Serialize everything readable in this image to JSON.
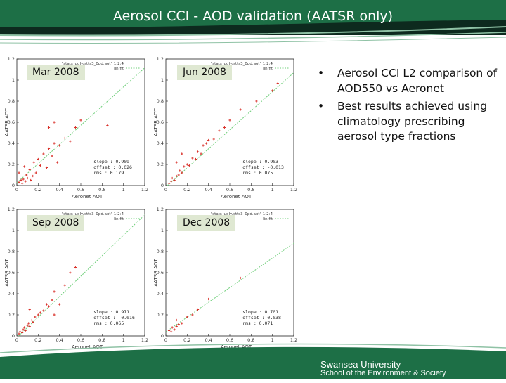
{
  "slide": {
    "title": "Aerosol CCI - AOD validation (AATSR only)",
    "colors": {
      "header_dark": "#0d2a1e",
      "header_green": "#1d6f46",
      "stripe": "#8fc2a5",
      "month_label_bg": "#dfe8d2",
      "points": "#d9322b",
      "fit_line": "#6fcf7a"
    },
    "bullets": [
      "Aerosol CCI L2 comparison of AOD550 vs Aeronet",
      "Best results achieved using climatology prescribing aerosol type fractions"
    ],
    "bullet_glyph": "•",
    "footer": {
      "university": "Swansea University",
      "school": "School of the Environment & Society"
    }
  },
  "chart_data": [
    {
      "type": "scatter",
      "panel_label": "Mar 2008",
      "plot_title": "\"stats_ugly/stts3_0pd.aot\" 1:2:4",
      "legend": "lin fit",
      "xlabel": "Aeronet AOT",
      "ylabel": "AATSR AOT",
      "xlim": [
        0,
        1.2
      ],
      "ylim": [
        0,
        1.2
      ],
      "xticks": [
        "0",
        "0.2",
        "0.4",
        "0.6",
        "0.8",
        "1",
        "1.2"
      ],
      "yticks": [
        "0",
        "0.2",
        "0.4",
        "0.6",
        "0.8",
        "1",
        "1.2"
      ],
      "fit": {
        "slope": 0.909,
        "offset": 0.026
      },
      "stats": [
        "slope  : 0.909",
        "offset : 0.026",
        "rms    : 0.179"
      ],
      "points": [
        [
          0.02,
          0.03
        ],
        [
          0.04,
          0.05
        ],
        [
          0.05,
          0.02
        ],
        [
          0.06,
          0.06
        ],
        [
          0.08,
          0.04
        ],
        [
          0.09,
          0.1
        ],
        [
          0.1,
          0.07
        ],
        [
          0.12,
          0.15
        ],
        [
          0.13,
          0.05
        ],
        [
          0.15,
          0.09
        ],
        [
          0.16,
          0.22
        ],
        [
          0.18,
          0.12
        ],
        [
          0.2,
          0.25
        ],
        [
          0.22,
          0.19
        ],
        [
          0.25,
          0.3
        ],
        [
          0.28,
          0.17
        ],
        [
          0.3,
          0.35
        ],
        [
          0.33,
          0.28
        ],
        [
          0.35,
          0.4
        ],
        [
          0.38,
          0.22
        ],
        [
          0.4,
          0.38
        ],
        [
          0.45,
          0.45
        ],
        [
          0.5,
          0.42
        ],
        [
          0.55,
          0.55
        ],
        [
          0.3,
          0.55
        ],
        [
          0.35,
          0.6
        ],
        [
          0.6,
          0.62
        ],
        [
          0.85,
          0.57
        ],
        [
          0.02,
          0.12
        ],
        [
          0.07,
          0.18
        ]
      ]
    },
    {
      "type": "scatter",
      "panel_label": "Jun 2008",
      "plot_title": "\"stats_ugly/stts3_0pd.aot\" 1:2:4",
      "legend": "lin fit",
      "xlabel": "Aeronet AOT",
      "ylabel": "AATSR AOT",
      "xlim": [
        0,
        1.2
      ],
      "ylim": [
        0,
        1.2
      ],
      "xticks": [
        "0",
        "0.2",
        "0.4",
        "0.6",
        "0.8",
        "1",
        "1.2"
      ],
      "yticks": [
        "0",
        "0.2",
        "0.4",
        "0.6",
        "0.8",
        "1",
        "1.2"
      ],
      "fit": {
        "slope": 0.903,
        "offset": -0.013
      },
      "stats": [
        "slope  : 0.903",
        "offset : -0.013",
        "rms    : 0.075"
      ],
      "points": [
        [
          0.03,
          0.02
        ],
        [
          0.05,
          0.04
        ],
        [
          0.06,
          0.07
        ],
        [
          0.08,
          0.05
        ],
        [
          0.1,
          0.09
        ],
        [
          0.12,
          0.1
        ],
        [
          0.13,
          0.14
        ],
        [
          0.15,
          0.12
        ],
        [
          0.17,
          0.18
        ],
        [
          0.2,
          0.2
        ],
        [
          0.22,
          0.19
        ],
        [
          0.25,
          0.26
        ],
        [
          0.28,
          0.25
        ],
        [
          0.3,
          0.32
        ],
        [
          0.33,
          0.3
        ],
        [
          0.35,
          0.38
        ],
        [
          0.38,
          0.4
        ],
        [
          0.4,
          0.43
        ],
        [
          0.45,
          0.44
        ],
        [
          0.5,
          0.52
        ],
        [
          0.55,
          0.55
        ],
        [
          0.6,
          0.62
        ],
        [
          0.7,
          0.72
        ],
        [
          0.85,
          0.8
        ],
        [
          1.0,
          0.9
        ],
        [
          1.05,
          0.97
        ],
        [
          0.15,
          0.3
        ],
        [
          0.1,
          0.22
        ]
      ]
    },
    {
      "type": "scatter",
      "panel_label": "Sep 2008",
      "plot_title": "\"stats_ugly/stts3_0pd.aot\" 1:2:4",
      "legend": "lin fit",
      "xlabel": "Aeronet AOT",
      "ylabel": "AATSR AOT",
      "xlim": [
        0,
        1.2
      ],
      "ylim": [
        0,
        1.2
      ],
      "xticks": [
        "0",
        "0.2",
        "0.4",
        "0.6",
        "0.8",
        "1",
        "1.2"
      ],
      "yticks": [
        "0",
        "0.2",
        "0.4",
        "0.6",
        "0.8",
        "1",
        "1.2"
      ],
      "fit": {
        "slope": 0.971,
        "offset": -0.016
      },
      "stats": [
        "slope  : 0.971",
        "offset : -0.016",
        "rms    : 0.065"
      ],
      "points": [
        [
          0.02,
          0.02
        ],
        [
          0.03,
          0.04
        ],
        [
          0.05,
          0.03
        ],
        [
          0.06,
          0.06
        ],
        [
          0.07,
          0.08
        ],
        [
          0.08,
          0.05
        ],
        [
          0.1,
          0.1
        ],
        [
          0.11,
          0.12
        ],
        [
          0.12,
          0.09
        ],
        [
          0.14,
          0.15
        ],
        [
          0.15,
          0.13
        ],
        [
          0.17,
          0.18
        ],
        [
          0.2,
          0.2
        ],
        [
          0.22,
          0.22
        ],
        [
          0.25,
          0.24
        ],
        [
          0.28,
          0.3
        ],
        [
          0.3,
          0.28
        ],
        [
          0.33,
          0.34
        ],
        [
          0.35,
          0.42
        ],
        [
          0.4,
          0.3
        ],
        [
          0.45,
          0.48
        ],
        [
          0.5,
          0.6
        ],
        [
          0.55,
          0.65
        ],
        [
          0.35,
          0.2
        ],
        [
          0.12,
          0.25
        ]
      ]
    },
    {
      "type": "scatter",
      "panel_label": "Dec 2008",
      "plot_title": "\"stats_ugly/stts3_0pd.aot\" 1:2:4",
      "legend": "lin fit",
      "xlabel": "Aeronet AOT",
      "ylabel": "AATSR AOT",
      "xlim": [
        0,
        1.2
      ],
      "ylim": [
        0,
        1.2
      ],
      "xticks": [
        "0",
        "0.2",
        "0.4",
        "0.6",
        "0.8",
        "1",
        "1.2"
      ],
      "yticks": [
        "0",
        "0.2",
        "0.4",
        "0.6",
        "0.8",
        "1",
        "1.2"
      ],
      "fit": {
        "slope": 0.701,
        "offset": 0.038
      },
      "stats": [
        "slope  : 0.701",
        "offset : 0.038",
        "rms    : 0.071"
      ],
      "points": [
        [
          0.03,
          0.05
        ],
        [
          0.05,
          0.04
        ],
        [
          0.06,
          0.08
        ],
        [
          0.08,
          0.06
        ],
        [
          0.1,
          0.09
        ],
        [
          0.12,
          0.11
        ],
        [
          0.15,
          0.12
        ],
        [
          0.2,
          0.18
        ],
        [
          0.25,
          0.2
        ],
        [
          0.3,
          0.25
        ],
        [
          0.4,
          0.35
        ],
        [
          0.7,
          0.55
        ],
        [
          0.1,
          0.15
        ]
      ]
    }
  ]
}
